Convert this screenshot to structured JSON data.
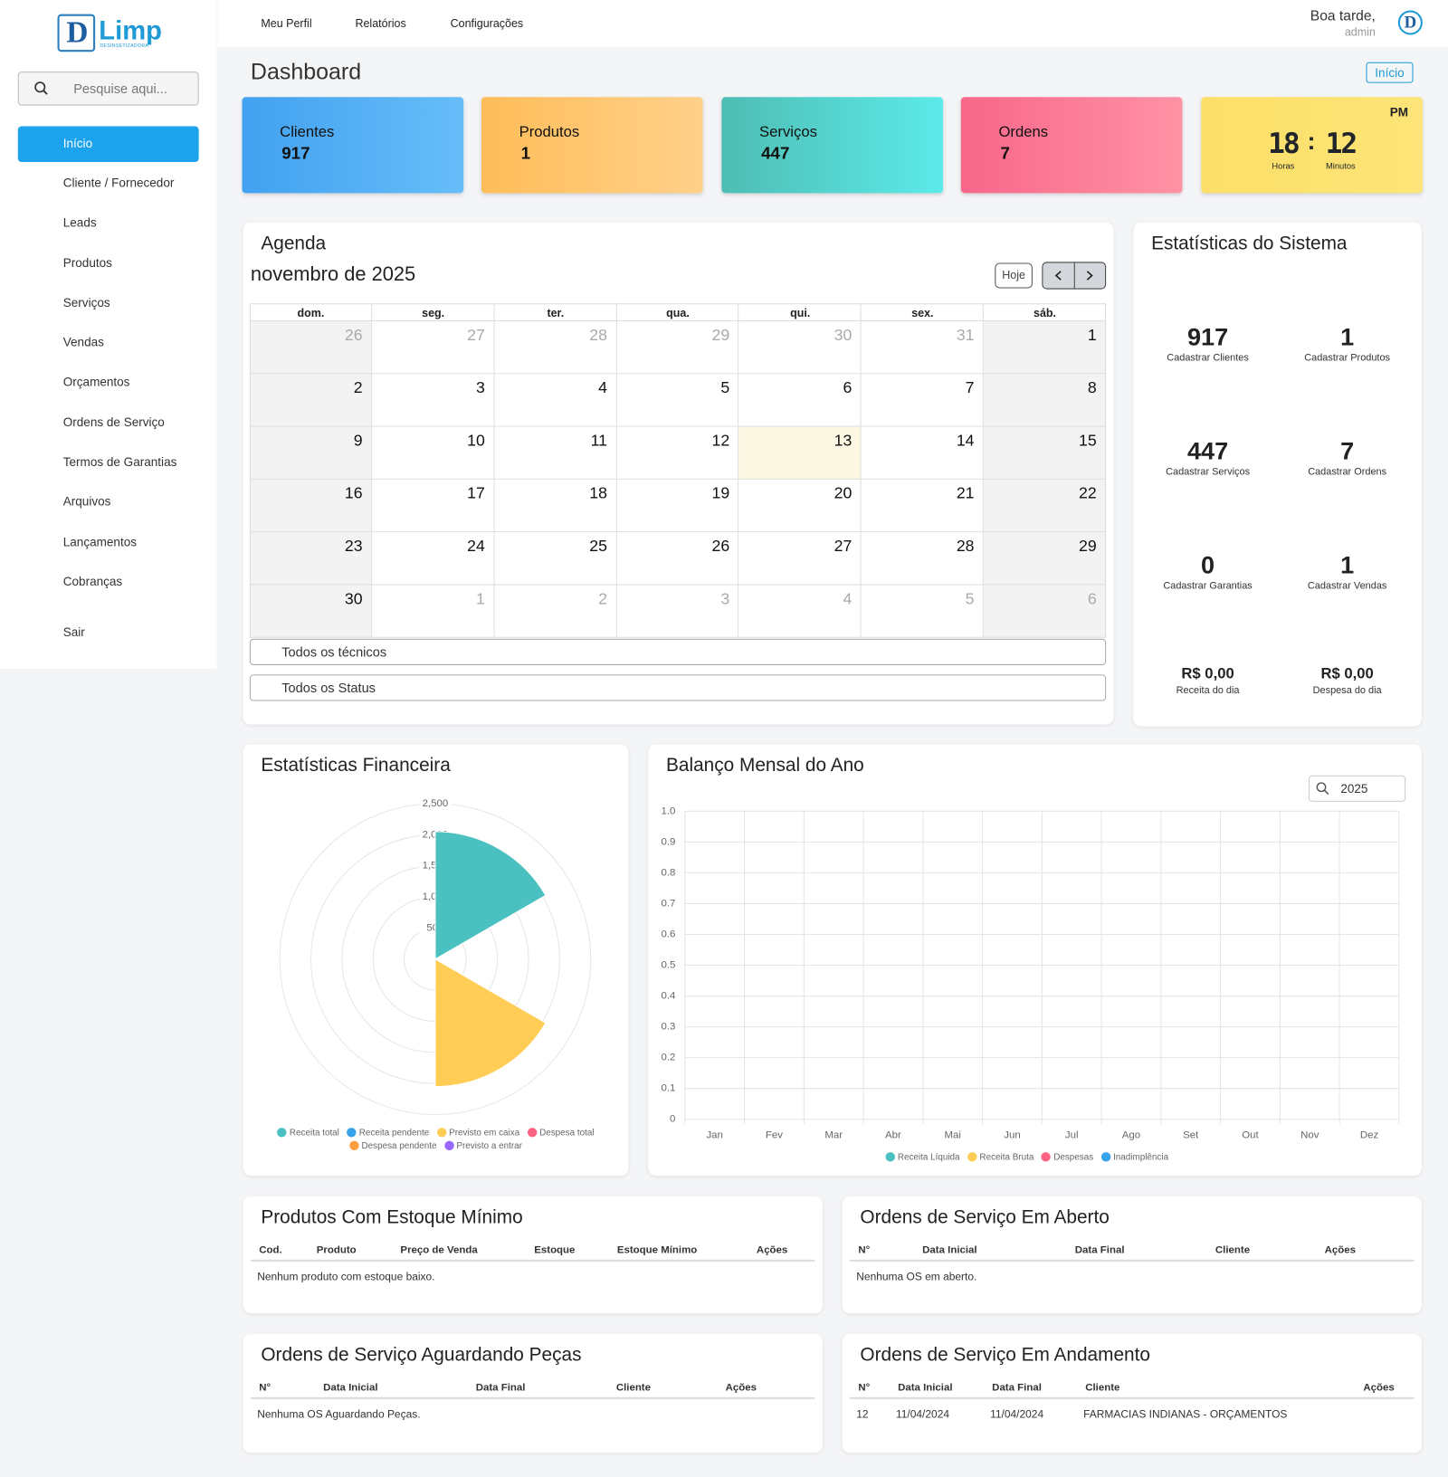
{
  "brand": {
    "initial": "D",
    "name": "Limp",
    "tagline": "DESINSETIZADORA"
  },
  "search": {
    "placeholder": "Pesquise aqui..."
  },
  "sidebar": {
    "items": [
      "Início",
      "Cliente / Fornecedor",
      "Leads",
      "Produtos",
      "Serviços",
      "Vendas",
      "Orçamentos",
      "Ordens de Serviço",
      "Termos de Garantias",
      "Arquivos",
      "Lançamentos",
      "Cobranças"
    ],
    "logout": "Sair"
  },
  "topnav": [
    "Meu Perfil",
    "Relatórios",
    "Configurações"
  ],
  "user": {
    "greeting": "Boa tarde,",
    "name": "admin",
    "avatar": "D"
  },
  "header": {
    "title": "Dashboard",
    "breadcrumb": "Início"
  },
  "cards": [
    {
      "label": "Clientes",
      "value": 917
    },
    {
      "label": "Produtos",
      "value": 1
    },
    {
      "label": "Serviços",
      "value": 447
    },
    {
      "label": "Ordens",
      "value": 7
    }
  ],
  "clock": {
    "period": "PM",
    "hours": "18",
    "minutes": "12",
    "hours_label": "Horas",
    "minutes_label": "Minutos"
  },
  "agenda": {
    "title": "Agenda",
    "month": "novembro de 2025",
    "today_button": "Hoje",
    "today": 13,
    "weekdays": [
      "dom.",
      "seg.",
      "ter.",
      "qua.",
      "qui.",
      "sex.",
      "sáb."
    ],
    "weeks": [
      [
        26,
        27,
        28,
        29,
        30,
        31,
        1
      ],
      [
        2,
        3,
        4,
        5,
        6,
        7,
        8
      ],
      [
        9,
        10,
        11,
        12,
        13,
        14,
        15
      ],
      [
        16,
        17,
        18,
        19,
        20,
        21,
        22
      ],
      [
        23,
        24,
        25,
        26,
        27,
        28,
        29
      ],
      [
        30,
        1,
        2,
        3,
        4,
        5,
        6
      ]
    ],
    "filters": [
      "Todos os técnicos",
      "Todos os Status"
    ]
  },
  "system_stats": {
    "title": "Estatísticas do Sistema",
    "items": [
      {
        "value": 917,
        "label": "Cadastrar Clientes"
      },
      {
        "value": 1,
        "label": "Cadastrar Produtos"
      },
      {
        "value": 447,
        "label": "Cadastrar Serviços"
      },
      {
        "value": 7,
        "label": "Cadastrar Ordens"
      },
      {
        "value": 0,
        "label": "Cadastrar Garantias"
      },
      {
        "value": 1,
        "label": "Cadastrar Vendas"
      },
      {
        "value": "R$ 0,00",
        "label": "Receita do dia"
      },
      {
        "value": "R$ 0,00",
        "label": "Despesa do dia"
      }
    ]
  },
  "financial_chart": {
    "type": "polarArea",
    "title": "Estatísticas Financeira",
    "categories": [
      "Receita total",
      "Receita pendente",
      "Previsto em caixa",
      "Despesa total",
      "Despesa pendente",
      "Previsto a entrar"
    ],
    "values": [
      2050,
      0,
      2050,
      0,
      0,
      0
    ],
    "colors": [
      "#4bc0c0",
      "#36a2eb",
      "#ffcd56",
      "#ff6384",
      "#ff9f40",
      "#9966ff"
    ],
    "rlim": [
      0,
      2500
    ],
    "rticks": [
      500,
      {
        "value": 1000,
        "label": "1,000"
      },
      {
        "value": 1500,
        "label": "1,500"
      },
      {
        "value": 2000,
        "label": "2,000"
      },
      {
        "value": 2500,
        "label": "2,500"
      }
    ]
  },
  "balance_chart": {
    "type": "line",
    "title": "Balanço Mensal do Ano",
    "year_filter": "2025",
    "categories": [
      "Jan",
      "Fev",
      "Mar",
      "Abr",
      "Mai",
      "Jun",
      "Jul",
      "Ago",
      "Set",
      "Out",
      "Nov",
      "Dez"
    ],
    "series": [
      {
        "name": "Receita Líquida",
        "color": "#4bc0c0",
        "values": [
          null,
          null,
          null,
          null,
          null,
          null,
          null,
          null,
          null,
          null,
          null,
          null
        ]
      },
      {
        "name": "Receita Bruta",
        "color": "#ffcd56",
        "values": [
          null,
          null,
          null,
          null,
          null,
          null,
          null,
          null,
          null,
          null,
          null,
          null
        ]
      },
      {
        "name": "Despesas",
        "color": "#ff6384",
        "values": [
          null,
          null,
          null,
          null,
          null,
          null,
          null,
          null,
          null,
          null,
          null,
          null
        ]
      },
      {
        "name": "Inadimplência",
        "color": "#36a2eb",
        "values": [
          null,
          null,
          null,
          null,
          null,
          null,
          null,
          null,
          null,
          null,
          null,
          null
        ]
      }
    ],
    "ylim": [
      0,
      1
    ],
    "yticks": [
      0,
      0.1,
      0.2,
      0.3,
      0.4,
      0.5,
      0.6,
      0.7,
      0.8,
      0.9,
      {
        "value": 1,
        "label": "1.0"
      }
    ],
    "grid": true
  },
  "tables": [
    {
      "title": "Produtos Com Estoque Mínimo",
      "columns": [
        "Cod.",
        "Produto",
        "Preço de Venda",
        "Estoque",
        "Estoque Mínimo",
        "Ações"
      ],
      "rows": [],
      "empty": "Nenhum produto com estoque baixo."
    },
    {
      "title": "Ordens de Serviço Em Aberto",
      "columns": [
        "N°",
        "Data Inicial",
        "Data Final",
        "Cliente",
        "Ações"
      ],
      "rows": [],
      "empty": "Nenhuma OS em aberto."
    },
    {
      "title": "Ordens de Serviço Aguardando Peças",
      "columns": [
        "N°",
        "Data Inicial",
        "Data Final",
        "Cliente",
        "Ações"
      ],
      "rows": [],
      "empty": "Nenhuma OS Aguardando Peças."
    },
    {
      "title": "Ordens de Serviço Em Andamento",
      "columns": [
        "N°",
        "Data Inicial",
        "Data Final",
        "Cliente",
        "Ações"
      ],
      "rows": [
        [
          12,
          "11/04/2024",
          "11/04/2024",
          "FARMACIAS INDIANAS - ORÇAMENTOS"
        ]
      ]
    }
  ]
}
